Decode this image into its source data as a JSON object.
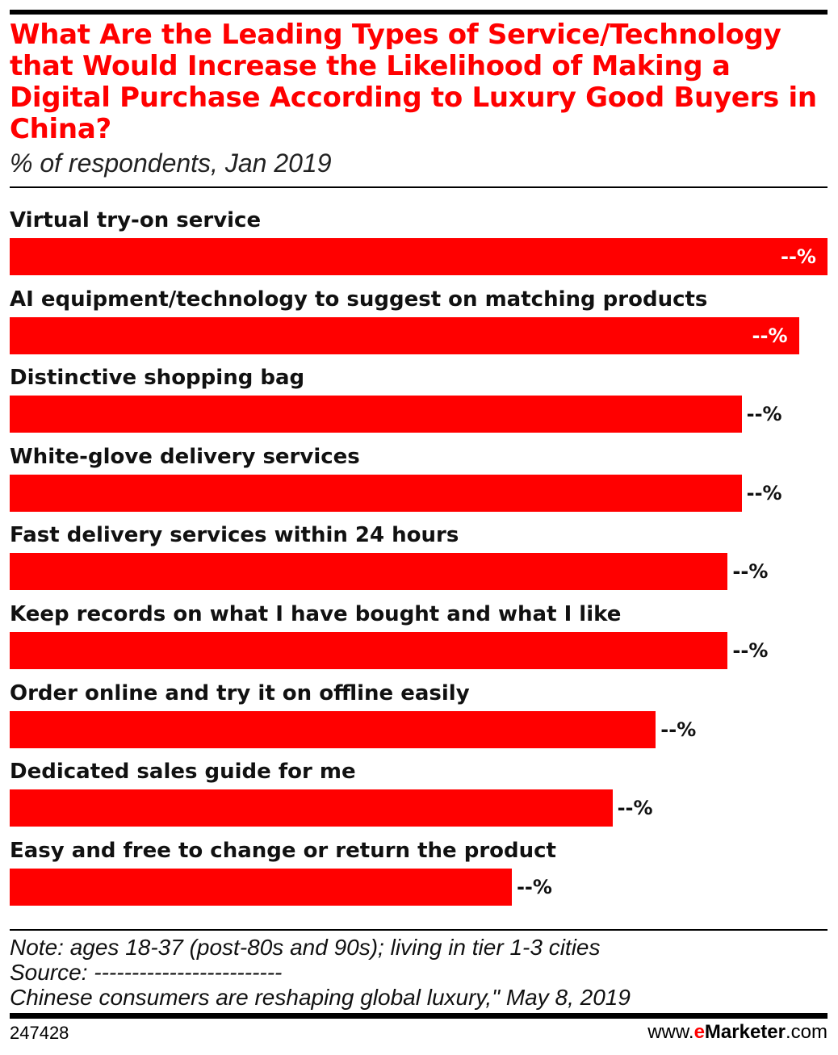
{
  "chart_data": {
    "type": "bar",
    "orientation": "horizontal",
    "title": "What Are the Leading Types of Service/Technology that Would Increase the Likelihood of Making a Digital Purchase According to Luxury Good Buyers in China?",
    "subtitle": "% of respondents, Jan 2019",
    "categories": [
      "Virtual try-on service",
      "AI equipment/technology to suggest on matching products",
      "Distinctive shopping bag",
      "White-glove delivery services",
      "Fast delivery services within 24 hours",
      "Keep records on what I have bought and what I like",
      "Order online and try it on offline easily",
      "Dedicated sales guide for me",
      "Easy and free to change or return the product"
    ],
    "values": [
      100,
      96.5,
      89.5,
      89.5,
      87.8,
      87.8,
      79,
      73.7,
      61.4
    ],
    "value_note": "relative bar lengths (max = 100); actual values not printed",
    "data_labels": [
      "--%",
      "--%",
      "--%",
      "--%",
      "--%",
      "--%",
      "--%",
      "--%",
      "--%"
    ],
    "bar_color": "#ff0000",
    "xlabel": "",
    "ylabel": "",
    "grid": false,
    "legend": "none"
  },
  "footer": {
    "note": "Note: ages 18-37 (post-80s and 90s); living in tier 1-3 cities",
    "source": "Source: -------------------------",
    "source_line2": "Chinese consumers are reshaping global luxury,\" May 8, 2019",
    "chart_id": "247428",
    "brand_prefix": "www.",
    "brand_e": "e",
    "brand_name": "Marketer",
    "brand_suffix": ".com"
  }
}
